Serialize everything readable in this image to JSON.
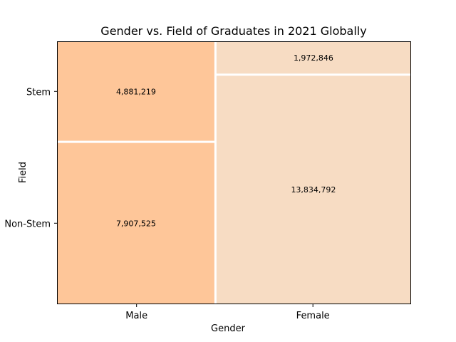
{
  "chart_data": {
    "type": "mosaic",
    "title": "Gender vs. Field of Graduates in 2021 Globally",
    "xlabel": "Gender",
    "ylabel": "Field",
    "categories": [
      "Male",
      "Female"
    ],
    "rows": [
      "Stem",
      "Non-Stem"
    ],
    "cells": [
      {
        "gender": "Male",
        "field": "Stem",
        "value": 4881219,
        "label": "4,881,219",
        "color": "#fec699"
      },
      {
        "gender": "Male",
        "field": "Non-Stem",
        "value": 7907525,
        "label": "7,907,525",
        "color": "#fec699"
      },
      {
        "gender": "Female",
        "field": "Stem",
        "value": 1972846,
        "label": "1,972,846",
        "color": "#f7dcc3"
      },
      {
        "gender": "Female",
        "field": "Non-Stem",
        "value": 13834792,
        "label": "13,834,792",
        "color": "#f7dcc3"
      }
    ],
    "grid": false,
    "legend": "none"
  }
}
